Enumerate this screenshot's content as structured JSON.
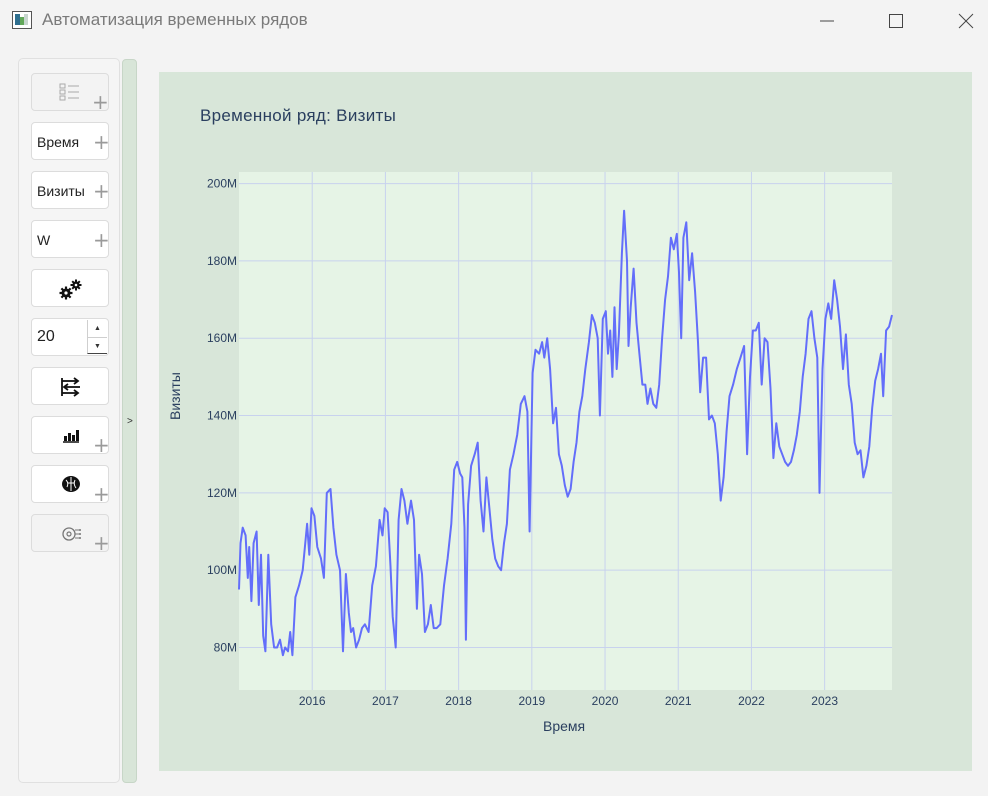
{
  "window": {
    "title": "Автоматизация временных рядов",
    "controls": [
      "minimize-icon",
      "maximize-icon",
      "close-icon"
    ]
  },
  "sidebar": {
    "items": [
      {
        "type": "icon-button",
        "icon": "list-icon",
        "enabled": false
      },
      {
        "type": "field",
        "label": "Время"
      },
      {
        "type": "field",
        "label": "Визиты"
      },
      {
        "type": "field",
        "label": "W"
      },
      {
        "type": "icon-button",
        "icon": "gears-icon"
      },
      {
        "type": "spinbox",
        "value": "20"
      },
      {
        "type": "icon-button",
        "icon": "transfer-icon"
      },
      {
        "type": "icon-button",
        "icon": "bar-chart-icon"
      },
      {
        "type": "icon-button",
        "icon": "brain-icon"
      },
      {
        "type": "icon-button",
        "icon": "ai-chip-icon",
        "enabled": false
      }
    ],
    "collapse_label": ">"
  },
  "chart_data": {
    "type": "line",
    "title": "Временной ряд: Визиты",
    "xlabel": "Время",
    "ylabel": "Визиты",
    "x_ticks": [
      "2016",
      "2017",
      "2018",
      "2019",
      "2020",
      "2021",
      "2022",
      "2023"
    ],
    "y_ticks": [
      "80M",
      "100M",
      "120M",
      "140M",
      "160M",
      "180M",
      "200M"
    ],
    "ylim": [
      69000000,
      203000000
    ],
    "xlim": [
      2015.0,
      2023.92
    ],
    "grid": true,
    "colors": {
      "line": "#636efa",
      "plot_bg": "#e6f4e6",
      "paper_bg": "#d8e6d9",
      "grid": "#c8d2ee"
    },
    "series": [
      {
        "values": [
          [
            2015.0,
            95
          ],
          [
            2015.02,
            107
          ],
          [
            2015.05,
            111
          ],
          [
            2015.09,
            109
          ],
          [
            2015.12,
            98
          ],
          [
            2015.14,
            106
          ],
          [
            2015.17,
            92
          ],
          [
            2015.2,
            107
          ],
          [
            2015.24,
            110
          ],
          [
            2015.27,
            91
          ],
          [
            2015.3,
            104
          ],
          [
            2015.33,
            83
          ],
          [
            2015.36,
            79
          ],
          [
            2015.4,
            104
          ],
          [
            2015.44,
            86
          ],
          [
            2015.48,
            80
          ],
          [
            2015.52,
            80
          ],
          [
            2015.56,
            82
          ],
          [
            2015.6,
            78
          ],
          [
            2015.63,
            80
          ],
          [
            2015.67,
            79
          ],
          [
            2015.7,
            84
          ],
          [
            2015.73,
            78
          ],
          [
            2015.77,
            93
          ],
          [
            2015.82,
            96
          ],
          [
            2015.87,
            100
          ],
          [
            2015.93,
            112
          ],
          [
            2015.96,
            104
          ],
          [
            2015.99,
            116
          ],
          [
            2016.03,
            114
          ],
          [
            2016.07,
            106
          ],
          [
            2016.12,
            103
          ],
          [
            2016.16,
            98
          ],
          [
            2016.2,
            120
          ],
          [
            2016.25,
            121
          ],
          [
            2016.29,
            111
          ],
          [
            2016.33,
            104
          ],
          [
            2016.38,
            100
          ],
          [
            2016.42,
            79
          ],
          [
            2016.46,
            99
          ],
          [
            2016.5,
            89
          ],
          [
            2016.53,
            84
          ],
          [
            2016.56,
            85
          ],
          [
            2016.6,
            80
          ],
          [
            2016.64,
            82
          ],
          [
            2016.68,
            85
          ],
          [
            2016.72,
            86
          ],
          [
            2016.77,
            84
          ],
          [
            2016.82,
            96
          ],
          [
            2016.87,
            101
          ],
          [
            2016.92,
            113
          ],
          [
            2016.96,
            109
          ],
          [
            2016.99,
            116
          ],
          [
            2017.03,
            115
          ],
          [
            2017.07,
            101
          ],
          [
            2017.1,
            88
          ],
          [
            2017.14,
            80
          ],
          [
            2017.18,
            113
          ],
          [
            2017.22,
            121
          ],
          [
            2017.26,
            118
          ],
          [
            2017.3,
            112
          ],
          [
            2017.35,
            118
          ],
          [
            2017.39,
            113
          ],
          [
            2017.43,
            90
          ],
          [
            2017.46,
            104
          ],
          [
            2017.5,
            99
          ],
          [
            2017.54,
            84
          ],
          [
            2017.58,
            86
          ],
          [
            2017.62,
            91
          ],
          [
            2017.66,
            85
          ],
          [
            2017.7,
            85
          ],
          [
            2017.75,
            86
          ],
          [
            2017.8,
            96
          ],
          [
            2017.85,
            103
          ],
          [
            2017.9,
            112
          ],
          [
            2017.94,
            126
          ],
          [
            2017.98,
            128
          ],
          [
            2018.02,
            125
          ],
          [
            2018.05,
            124
          ],
          [
            2018.08,
            111
          ],
          [
            2018.1,
            82
          ],
          [
            2018.13,
            117
          ],
          [
            2018.17,
            127
          ],
          [
            2018.22,
            130
          ],
          [
            2018.26,
            133
          ],
          [
            2018.3,
            118
          ],
          [
            2018.34,
            110
          ],
          [
            2018.38,
            124
          ],
          [
            2018.42,
            116
          ],
          [
            2018.46,
            108
          ],
          [
            2018.5,
            103
          ],
          [
            2018.54,
            101
          ],
          [
            2018.58,
            100
          ],
          [
            2018.62,
            107
          ],
          [
            2018.66,
            112
          ],
          [
            2018.7,
            126
          ],
          [
            2018.75,
            130
          ],
          [
            2018.8,
            135
          ],
          [
            2018.85,
            143
          ],
          [
            2018.9,
            145
          ],
          [
            2018.94,
            141
          ],
          [
            2018.97,
            110
          ],
          [
            2019.01,
            151
          ],
          [
            2019.05,
            157
          ],
          [
            2019.1,
            156
          ],
          [
            2019.14,
            159
          ],
          [
            2019.17,
            155
          ],
          [
            2019.21,
            160
          ],
          [
            2019.25,
            152
          ],
          [
            2019.29,
            138
          ],
          [
            2019.33,
            142
          ],
          [
            2019.37,
            130
          ],
          [
            2019.41,
            127
          ],
          [
            2019.45,
            122
          ],
          [
            2019.49,
            119
          ],
          [
            2019.53,
            121
          ],
          [
            2019.57,
            128
          ],
          [
            2019.61,
            133
          ],
          [
            2019.65,
            141
          ],
          [
            2019.69,
            145
          ],
          [
            2019.73,
            152
          ],
          [
            2019.78,
            159
          ],
          [
            2019.82,
            166
          ],
          [
            2019.86,
            164
          ],
          [
            2019.9,
            160
          ],
          [
            2019.93,
            140
          ],
          [
            2019.97,
            165
          ],
          [
            2020.01,
            167
          ],
          [
            2020.04,
            156
          ],
          [
            2020.07,
            162
          ],
          [
            2020.1,
            150
          ],
          [
            2020.13,
            168
          ],
          [
            2020.16,
            152
          ],
          [
            2020.19,
            161
          ],
          [
            2020.23,
            182
          ],
          [
            2020.26,
            193
          ],
          [
            2020.3,
            180
          ],
          [
            2020.32,
            158
          ],
          [
            2020.35,
            168
          ],
          [
            2020.39,
            178
          ],
          [
            2020.43,
            164
          ],
          [
            2020.47,
            156
          ],
          [
            2020.51,
            148
          ],
          [
            2020.55,
            148
          ],
          [
            2020.58,
            143
          ],
          [
            2020.62,
            147
          ],
          [
            2020.66,
            143
          ],
          [
            2020.7,
            142
          ],
          [
            2020.74,
            148
          ],
          [
            2020.78,
            160
          ],
          [
            2020.82,
            170
          ],
          [
            2020.86,
            176
          ],
          [
            2020.9,
            186
          ],
          [
            2020.94,
            183
          ],
          [
            2020.98,
            187
          ],
          [
            2021.01,
            177
          ],
          [
            2021.04,
            160
          ],
          [
            2021.07,
            186
          ],
          [
            2021.11,
            190
          ],
          [
            2021.15,
            175
          ],
          [
            2021.19,
            182
          ],
          [
            2021.23,
            172
          ],
          [
            2021.27,
            159
          ],
          [
            2021.3,
            146
          ],
          [
            2021.34,
            155
          ],
          [
            2021.38,
            155
          ],
          [
            2021.42,
            139
          ],
          [
            2021.46,
            140
          ],
          [
            2021.5,
            138
          ],
          [
            2021.54,
            130
          ],
          [
            2021.58,
            118
          ],
          [
            2021.62,
            124
          ],
          [
            2021.66,
            136
          ],
          [
            2021.7,
            145
          ],
          [
            2021.75,
            148
          ],
          [
            2021.8,
            152
          ],
          [
            2021.85,
            155
          ],
          [
            2021.9,
            158
          ],
          [
            2021.94,
            130
          ],
          [
            2021.98,
            150
          ],
          [
            2022.02,
            162
          ],
          [
            2022.06,
            162
          ],
          [
            2022.1,
            164
          ],
          [
            2022.14,
            148
          ],
          [
            2022.18,
            160
          ],
          [
            2022.22,
            159
          ],
          [
            2022.26,
            147
          ],
          [
            2022.3,
            129
          ],
          [
            2022.34,
            138
          ],
          [
            2022.38,
            132
          ],
          [
            2022.42,
            130
          ],
          [
            2022.46,
            128
          ],
          [
            2022.5,
            127
          ],
          [
            2022.54,
            128
          ],
          [
            2022.58,
            131
          ],
          [
            2022.62,
            135
          ],
          [
            2022.66,
            141
          ],
          [
            2022.7,
            150
          ],
          [
            2022.74,
            156
          ],
          [
            2022.78,
            165
          ],
          [
            2022.82,
            167
          ],
          [
            2022.86,
            160
          ],
          [
            2022.9,
            155
          ],
          [
            2022.93,
            120
          ],
          [
            2022.97,
            152
          ],
          [
            2023.01,
            165
          ],
          [
            2023.05,
            169
          ],
          [
            2023.09,
            165
          ],
          [
            2023.13,
            175
          ],
          [
            2023.17,
            170
          ],
          [
            2023.21,
            163
          ],
          [
            2023.25,
            152
          ],
          [
            2023.29,
            161
          ],
          [
            2023.33,
            148
          ],
          [
            2023.37,
            143
          ],
          [
            2023.41,
            133
          ],
          [
            2023.45,
            130
          ],
          [
            2023.49,
            131
          ],
          [
            2023.53,
            124
          ],
          [
            2023.57,
            127
          ],
          [
            2023.61,
            132
          ],
          [
            2023.65,
            142
          ],
          [
            2023.69,
            149
          ],
          [
            2023.73,
            152
          ],
          [
            2023.77,
            156
          ],
          [
            2023.8,
            145
          ],
          [
            2023.84,
            162
          ],
          [
            2023.88,
            163
          ],
          [
            2023.92,
            166
          ]
        ]
      }
    ]
  }
}
